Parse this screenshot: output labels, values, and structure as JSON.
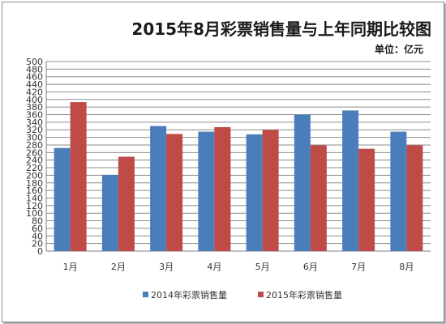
{
  "chart_data": {
    "type": "bar",
    "title": "2015年8月彩票销售量与上年同期比较图",
    "unit": "单位：亿元",
    "categories": [
      "1月",
      "2月",
      "3月",
      "4月",
      "5月",
      "6月",
      "7月",
      "8月"
    ],
    "series": [
      {
        "name": "2014年彩票销售量",
        "color": "#4a7ebb",
        "values": [
          272,
          201,
          330,
          315,
          308,
          360,
          371,
          315
        ]
      },
      {
        "name": "2015年彩票销售量",
        "color": "#be4b48",
        "values": [
          393,
          249,
          309,
          327,
          320,
          279,
          270,
          279
        ]
      }
    ],
    "ylim": [
      0,
      500
    ],
    "ytick_step": 20,
    "grid": true,
    "legend_position": "bottom"
  }
}
